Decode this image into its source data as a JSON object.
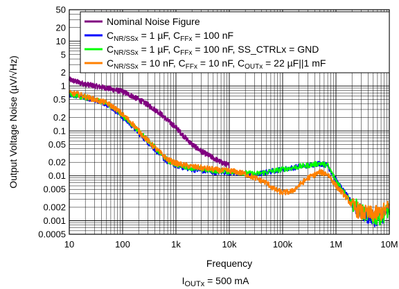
{
  "chart_data": {
    "type": "line",
    "xlabel": "Frequency",
    "ylabel": "Output Voltage Noise (µV/√Hz)",
    "caption": {
      "main": "I",
      "sub": "OUTx",
      "rest": " = 500 mA"
    },
    "x_scale": "log",
    "y_scale": "log",
    "xlim": [
      10,
      10000000
    ],
    "ylim": [
      0.0005,
      50
    ],
    "x_ticks": [
      {
        "value": 10,
        "label": "10"
      },
      {
        "value": 100,
        "label": "100"
      },
      {
        "value": 1000,
        "label": "1k"
      },
      {
        "value": 10000,
        "label": "10k"
      },
      {
        "value": 100000,
        "label": "100k"
      },
      {
        "value": 1000000,
        "label": "1M"
      },
      {
        "value": 10000000,
        "label": "10M"
      }
    ],
    "y_ticks": [
      {
        "value": 50,
        "label": "50"
      },
      {
        "value": 20,
        "label": "20"
      },
      {
        "value": 10,
        "label": "10"
      },
      {
        "value": 5,
        "label": "5"
      },
      {
        "value": 2,
        "label": "2"
      },
      {
        "value": 1,
        "label": "1"
      },
      {
        "value": 0.5,
        "label": "0.5"
      },
      {
        "value": 0.2,
        "label": "0.2"
      },
      {
        "value": 0.1,
        "label": "0.1"
      },
      {
        "value": 0.05,
        "label": "0.05"
      },
      {
        "value": 0.02,
        "label": "0.02"
      },
      {
        "value": 0.01,
        "label": "0.01"
      },
      {
        "value": 0.005,
        "label": "0.005"
      },
      {
        "value": 0.002,
        "label": "0.002"
      },
      {
        "value": 0.001,
        "label": "0.001"
      },
      {
        "value": 0.0005,
        "label": "0.0005"
      }
    ],
    "grid": true,
    "legend_position": "top-right",
    "series": [
      {
        "name": "Nominal Noise Figure",
        "legend": [
          {
            "t": "Nominal Noise Figure"
          }
        ],
        "color": "#800080",
        "x": [
          10,
          15,
          20,
          30,
          50,
          70,
          100,
          150,
          200,
          300,
          500,
          700,
          1000,
          1500,
          2000,
          3000,
          5000,
          7000,
          10000
        ],
        "y": [
          1.4,
          1.2,
          1.1,
          1.0,
          0.9,
          0.82,
          0.75,
          0.6,
          0.5,
          0.38,
          0.25,
          0.17,
          0.12,
          0.07,
          0.05,
          0.035,
          0.025,
          0.02,
          0.017
        ]
      },
      {
        "name": "CNR/SSx = 1 µF, CFFx = 100 nF",
        "legend": [
          {
            "t": "C"
          },
          {
            "t": "NR/SSx",
            "sub": true
          },
          {
            "t": " = 1 µF, C"
          },
          {
            "t": "FFx",
            "sub": true
          },
          {
            "t": " = 100 nF"
          }
        ],
        "color": "#0000ff",
        "x": [
          10,
          15,
          20,
          30,
          50,
          70,
          100,
          150,
          200,
          300,
          500,
          700,
          1000,
          1500,
          2000,
          3000,
          5000,
          7000,
          10000,
          15000,
          20000,
          30000,
          50000,
          70000,
          100000,
          150000,
          200000,
          300000,
          500000,
          700000,
          1000000,
          1500000,
          2000000,
          3000000,
          5000000,
          7000000,
          10000000
        ],
        "y": [
          0.65,
          0.6,
          0.55,
          0.5,
          0.4,
          0.3,
          0.2,
          0.13,
          0.09,
          0.055,
          0.03,
          0.02,
          0.017,
          0.015,
          0.014,
          0.013,
          0.012,
          0.012,
          0.012,
          0.0115,
          0.011,
          0.0105,
          0.012,
          0.013,
          0.014,
          0.015,
          0.016,
          0.017,
          0.019,
          0.017,
          0.008,
          0.004,
          0.0025,
          0.0015,
          0.0011,
          0.0012,
          0.0018
        ]
      },
      {
        "name": "CNR/SSx = 1 µF, CFFx = 100 nF, SS_CTRLx = GND",
        "legend": [
          {
            "t": "C"
          },
          {
            "t": "NR/SSx",
            "sub": true
          },
          {
            "t": " = 1 µF, C"
          },
          {
            "t": "FFx",
            "sub": true
          },
          {
            "t": " = 100 nF, SS_CTRLx = GND"
          }
        ],
        "color": "#00ff00",
        "x": [
          10,
          15,
          20,
          30,
          50,
          70,
          100,
          150,
          200,
          300,
          500,
          700,
          1000,
          1500,
          2000,
          3000,
          5000,
          7000,
          10000,
          15000,
          20000,
          30000,
          50000,
          70000,
          100000,
          150000,
          200000,
          300000,
          500000,
          700000,
          1000000,
          1500000,
          2000000,
          3000000,
          5000000,
          7000000,
          10000000
        ],
        "y": [
          0.65,
          0.6,
          0.55,
          0.5,
          0.42,
          0.32,
          0.22,
          0.14,
          0.1,
          0.06,
          0.032,
          0.022,
          0.018,
          0.016,
          0.015,
          0.014,
          0.013,
          0.013,
          0.0125,
          0.012,
          0.0115,
          0.011,
          0.012,
          0.013,
          0.014,
          0.015,
          0.016,
          0.017,
          0.019,
          0.017,
          0.008,
          0.004,
          0.0025,
          0.0016,
          0.0012,
          0.0012,
          0.0018
        ]
      },
      {
        "name": "CNR/SSx = 10 nF, CFFx = 10 nF, COUTx = 22 µF||1 mF",
        "legend": [
          {
            "t": "C"
          },
          {
            "t": "NR/SSx",
            "sub": true
          },
          {
            "t": " = 10 nF, C"
          },
          {
            "t": "FFx",
            "sub": true
          },
          {
            "t": " = 10 nF, C"
          },
          {
            "t": "OUTx",
            "sub": true
          },
          {
            "t": " = 22 µF||1 mF"
          }
        ],
        "color": "#ff8000",
        "x": [
          10,
          15,
          20,
          30,
          50,
          70,
          100,
          150,
          200,
          300,
          500,
          700,
          1000,
          1500,
          2000,
          3000,
          5000,
          7000,
          10000,
          15000,
          20000,
          30000,
          50000,
          70000,
          100000,
          150000,
          200000,
          300000,
          500000,
          700000,
          1000000,
          1500000,
          2000000,
          3000000,
          5000000,
          7000000,
          10000000
        ],
        "y": [
          0.7,
          0.65,
          0.58,
          0.5,
          0.42,
          0.33,
          0.23,
          0.15,
          0.1,
          0.06,
          0.033,
          0.023,
          0.019,
          0.017,
          0.016,
          0.015,
          0.014,
          0.013,
          0.013,
          0.012,
          0.011,
          0.009,
          0.007,
          0.005,
          0.0042,
          0.0045,
          0.006,
          0.009,
          0.012,
          0.011,
          0.006,
          0.0035,
          0.0022,
          0.0015,
          0.0014,
          0.0015,
          0.002
        ]
      }
    ]
  }
}
